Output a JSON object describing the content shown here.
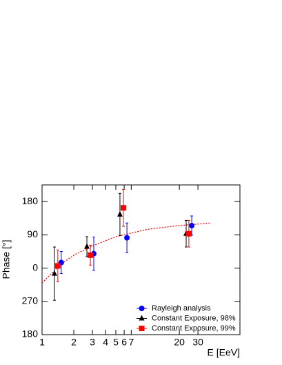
{
  "chart_data": {
    "type": "scatter",
    "xlabel": "E [EeV]",
    "ylabel": "Phase [°]",
    "xscale": "log",
    "xlim": [
      1,
      75
    ],
    "xticks": [
      1,
      2,
      3,
      4,
      5,
      6,
      7,
      20,
      30
    ],
    "ylim": [
      -180,
      225
    ],
    "yticks": [
      180,
      90,
      0,
      {
        "value": -90,
        "label": "270"
      },
      {
        "value": -180,
        "label": "180"
      }
    ],
    "series": [
      {
        "name": "Rayleigh analysis",
        "color": "#0000ff",
        "marker": "circle",
        "x": [
          1.52,
          3.09,
          6.37,
          26.2
        ],
        "values": [
          15,
          39,
          82,
          115
        ],
        "errors": [
          30,
          45,
          40,
          26
        ]
      },
      {
        "name": "Constant Exposure, 98%",
        "color": "#000000",
        "marker": "triangle",
        "x": [
          1.31,
          2.66,
          5.47,
          23.2
        ],
        "values": [
          -15,
          58,
          145,
          93
        ],
        "errors": [
          72,
          27,
          57,
          36
        ]
      },
      {
        "name": "Constant Exposure, 99%",
        "color": "#ff0000",
        "marker": "square",
        "x": [
          1.41,
          2.87,
          5.9,
          24.6
        ],
        "values": [
          6,
          35,
          163,
          93
        ],
        "errors": [
          43,
          27,
          50,
          36
        ]
      }
    ],
    "curve": {
      "color": "#ff0000",
      "x": [
        1,
        1.5,
        2,
        3,
        5,
        10,
        20,
        40
      ],
      "y": [
        -40,
        10,
        35,
        60,
        85,
        105,
        115,
        122
      ]
    }
  }
}
